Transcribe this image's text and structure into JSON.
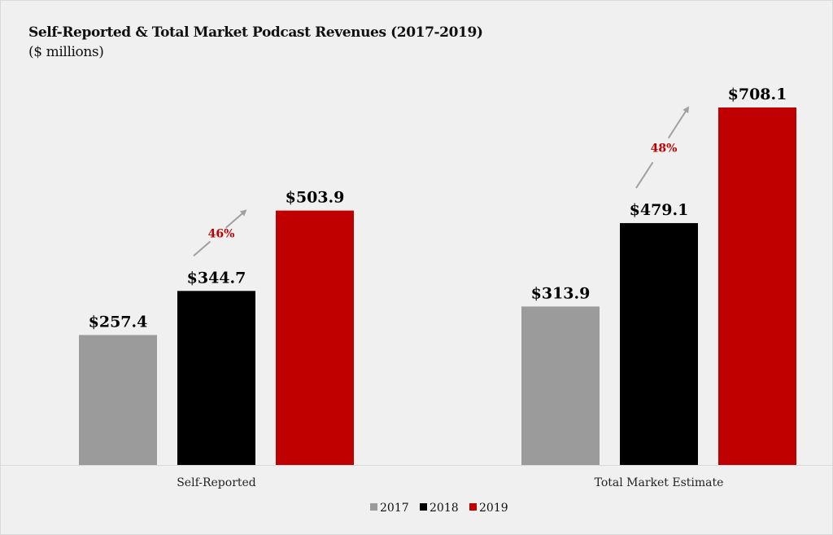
{
  "chart_data": {
    "type": "bar",
    "title": "Self-Reported & Total Market Podcast Revenues (2017-2019)",
    "subtitle": "($ millions)",
    "xlabel": "",
    "ylabel": "",
    "categories": [
      "Self-Reported",
      "Total Market Estimate"
    ],
    "series": [
      {
        "name": "2017",
        "color": "#9b9b9b",
        "values": [
          257.4,
          313.9
        ],
        "labels": [
          "$257.4",
          "$313.9"
        ]
      },
      {
        "name": "2018",
        "color": "#000000",
        "values": [
          344.7,
          479.1
        ],
        "labels": [
          "$344.7",
          "$479.1"
        ]
      },
      {
        "name": "2019",
        "color": "#c00000",
        "values": [
          503.9,
          708.1
        ],
        "labels": [
          "$503.9",
          "$708.1"
        ]
      }
    ],
    "annotations": [
      {
        "category": "Self-Reported",
        "from": "2018",
        "to": "2019",
        "text": "46%",
        "color": "#c00000",
        "arrow_color": "#a0a0a0"
      },
      {
        "category": "Total Market Estimate",
        "from": "2018",
        "to": "2019",
        "text": "48%",
        "color": "#c00000",
        "arrow_color": "#a0a0a0"
      }
    ],
    "ylim": [
      0,
      708.1
    ],
    "grid": false,
    "y_axis_visible": false,
    "legend": {
      "position": "bottom",
      "entries": [
        "2017",
        "2018",
        "2019"
      ]
    }
  }
}
